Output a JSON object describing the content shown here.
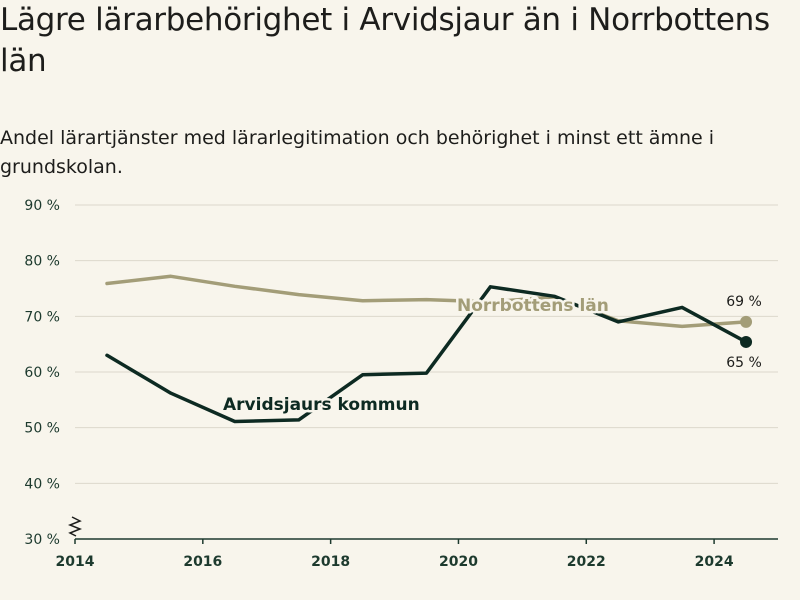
{
  "header": {
    "title": "Lägre lärarbehörighet i Arvidsjaur än i Norrbottens län",
    "subtitle": "Andel lärartjänster med lärarlegitimation och behörighet i minst ett ämne i grundskolan."
  },
  "chart_data": {
    "type": "line",
    "title": "Lägre lärarbehörighet i Arvidsjaur än i Norrbottens län",
    "subtitle": "Andel lärartjänster med lärarlegitimation och behörighet i minst ett ämne i grundskolan.",
    "xlabel": "",
    "ylabel": "",
    "xlim": [
      2014,
      2025
    ],
    "ylim": [
      30,
      90
    ],
    "y_axis_break": true,
    "grid": true,
    "x_ticks": [
      "2014",
      "2016",
      "2018",
      "2020",
      "2022",
      "2024"
    ],
    "y_ticks": [
      "30 %",
      "40 %",
      "50 %",
      "60 %",
      "70 %",
      "80 %",
      "90 %"
    ],
    "x": [
      2014.5,
      2015.5,
      2016.5,
      2017.5,
      2018.5,
      2019.5,
      2020.5,
      2021.5,
      2022.5,
      2023.5,
      2024.5
    ],
    "series": [
      {
        "name": "Norrbottens län",
        "color": "#a39d78",
        "values": [
          75.9,
          77.2,
          75.4,
          73.9,
          72.8,
          73.0,
          72.6,
          73.5,
          69.2,
          68.2,
          69.0
        ],
        "end_label": "69 %"
      },
      {
        "name": "Arvidsjaurs kommun",
        "color": "#0d2a22",
        "values": [
          63.0,
          56.2,
          51.1,
          51.4,
          59.5,
          59.8,
          75.3,
          73.6,
          69.0,
          71.6,
          65.4
        ],
        "end_label": "65 %"
      }
    ]
  }
}
